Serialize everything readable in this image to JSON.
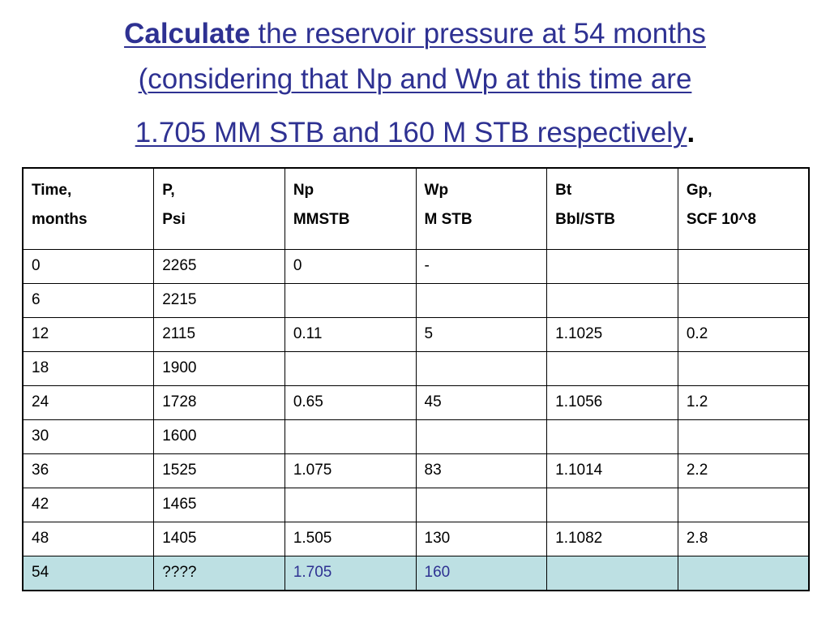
{
  "title": {
    "bold_word": "Calculate",
    "line1_rest": " the reservoir pressure at 54 months",
    "line2": "(considering that  Np and Wp at this time are",
    "line3": "1.705 MM STB and 160 M STB respectively",
    "period": ".",
    "color": "#2e3192"
  },
  "table": {
    "headers": [
      {
        "line1": "Time,",
        "line2": "months"
      },
      {
        "line1": "P,",
        "line2": "Psi"
      },
      {
        "line1": "Np",
        "line2": "MMSTB"
      },
      {
        "line1": "Wp",
        "line2": "M STB"
      },
      {
        "line1": "Bt",
        "line2": "Bbl/STB"
      },
      {
        "line1": "Gp,",
        "line2": "SCF 10^8"
      }
    ],
    "rows": [
      [
        "0",
        "2265",
        "0",
        "-",
        "",
        ""
      ],
      [
        "6",
        "2215",
        "",
        "",
        "",
        ""
      ],
      [
        "12",
        "2115",
        "0.11",
        "5",
        "1.1025",
        "0.2"
      ],
      [
        "18",
        "1900",
        "",
        "",
        "",
        ""
      ],
      [
        "24",
        "1728",
        "0.65",
        "45",
        "1.1056",
        "1.2"
      ],
      [
        "30",
        "1600",
        "",
        "",
        "",
        ""
      ],
      [
        "36",
        "1525",
        "1.075",
        "83",
        "1.1014",
        "2.2"
      ],
      [
        "42",
        "1465",
        "",
        "",
        "",
        ""
      ],
      [
        "48",
        "1405",
        "1.505",
        "130",
        "1.1082",
        "2.8"
      ],
      [
        "54",
        "????",
        "1.705",
        "160",
        "",
        ""
      ]
    ],
    "highlight_row_color": "#bde0e3",
    "highlight_text_color": "#2e3192"
  }
}
